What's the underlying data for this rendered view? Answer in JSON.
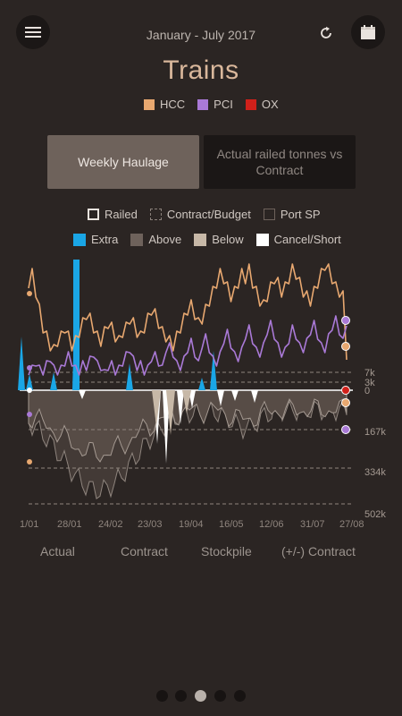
{
  "header": {
    "date_range": "January - July 2017",
    "title": "Trains",
    "menu_icon": "hamburger-menu-icon",
    "refresh_icon": "refresh-icon",
    "calendar_icon": "calendar-icon"
  },
  "series_legend": [
    {
      "label": "HCC",
      "color": "#e8a870"
    },
    {
      "label": "PCI",
      "color": "#a979d6"
    },
    {
      "label": "OX",
      "color": "#d0201a"
    }
  ],
  "tabs": {
    "weekly": "Weekly Haulage",
    "actual": "Actual railed tonnes vs Contract"
  },
  "style_legend": {
    "railed": "Railed",
    "contract": "Contract/Budget",
    "port": "Port SP",
    "extra": "Extra",
    "above": "Above",
    "below": "Below",
    "cancel": "Cancel/Short"
  },
  "chart_data": {
    "type": "line",
    "y_axis_labels": [
      "7k",
      "3k",
      "0",
      "167k",
      "334k",
      "502k"
    ],
    "x_tick_labels": [
      "1/01",
      "28/01",
      "24/02",
      "23/03",
      "19/04",
      "16/05",
      "12/06",
      "31/07",
      "27/08"
    ],
    "series": [
      {
        "name": "HCC",
        "color": "#e8a870",
        "values": [
          24,
          26,
          22,
          18,
          14,
          12,
          10,
          9,
          11,
          12,
          14,
          12,
          10,
          11,
          13,
          15,
          17,
          16,
          14,
          12,
          11,
          13,
          15,
          14,
          12,
          11,
          13,
          14,
          16,
          15,
          13,
          12,
          14,
          16,
          18,
          17,
          15,
          13,
          12,
          11,
          10,
          12,
          14,
          16,
          18,
          19,
          17,
          15,
          16,
          18,
          20,
          22,
          24,
          26,
          25,
          23,
          21,
          22,
          24,
          26,
          25,
          27,
          24,
          22,
          20,
          19,
          21,
          23,
          25,
          24,
          22,
          23,
          25,
          27,
          26,
          24,
          22,
          21,
          20,
          22,
          24,
          26,
          28,
          27,
          25,
          23,
          22,
          21,
          8
        ]
      },
      {
        "name": "PCI",
        "color": "#a979d6",
        "values": [
          4,
          5,
          6,
          5,
          4,
          6,
          7,
          5,
          4,
          5,
          6,
          8,
          6,
          5,
          4,
          6,
          5,
          7,
          8,
          6,
          5,
          4,
          5,
          6,
          4,
          5,
          6,
          8,
          9,
          7,
          5,
          6,
          4,
          5,
          7,
          8,
          6,
          5,
          9,
          10,
          8,
          6,
          5,
          7,
          9,
          11,
          8,
          6,
          10,
          12,
          9,
          7,
          6,
          8,
          11,
          13,
          10,
          8,
          7,
          9,
          12,
          14,
          11,
          9,
          8,
          10,
          13,
          15,
          12,
          10,
          8,
          9,
          11,
          14,
          12,
          10,
          9,
          11,
          13,
          15,
          12,
          10,
          9,
          12,
          14,
          16,
          13,
          11,
          15
        ]
      }
    ],
    "grid": "dashed reference lines"
  },
  "bottom_labels": [
    "Actual",
    "Contract",
    "Stockpile",
    "(+/-) Contract"
  ],
  "pagination": {
    "count": 5,
    "active_index": 2
  }
}
